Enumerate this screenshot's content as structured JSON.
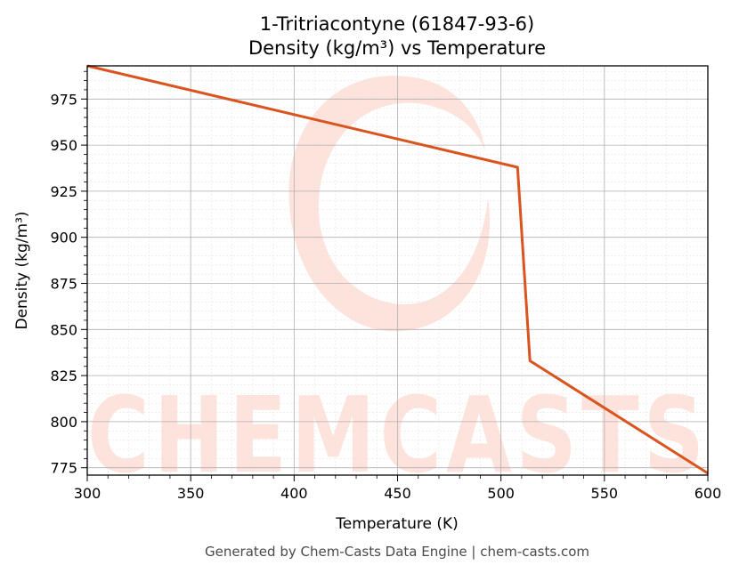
{
  "chart_data": {
    "type": "line",
    "title": "1-Tritriacontyne (61847-93-6)",
    "subtitle": "Density (kg/m³) vs Temperature",
    "xlabel": "Temperature (K)",
    "ylabel": "Density (kg/m³)",
    "xlim": [
      300,
      600
    ],
    "ylim": [
      771,
      993
    ],
    "x_ticks": [
      300,
      350,
      400,
      450,
      500,
      550,
      600
    ],
    "y_ticks": [
      775,
      800,
      825,
      850,
      875,
      900,
      925,
      950,
      975
    ],
    "grid": true,
    "series": [
      {
        "color": "#d9541e",
        "x": [
          300,
          508,
          514,
          600
        ],
        "y": [
          993,
          938,
          833,
          772
        ]
      }
    ]
  },
  "watermark": {
    "text": "CHEMCASTS",
    "color": "#fde3dc"
  },
  "footer": "Generated by Chem-Casts Data Engine | chem-casts.com"
}
